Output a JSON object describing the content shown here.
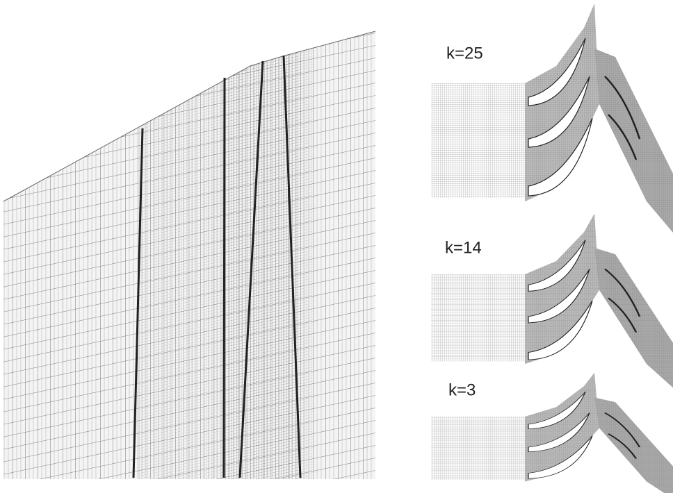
{
  "labels": [
    "k=25",
    "k=14",
    "k=3"
  ]
}
